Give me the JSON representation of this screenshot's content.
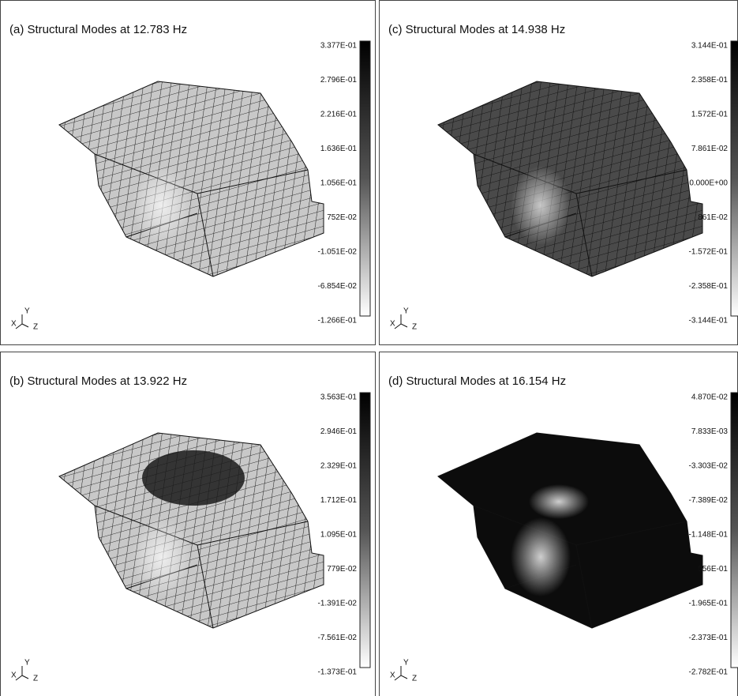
{
  "panels": [
    {
      "title": "(a) Structural Modes at 12.783 Hz",
      "colorbar_labels": [
        "3.377E-01",
        "2.796E-01",
        "2.216E-01",
        "1.636E-01",
        "1.056E-01",
        "752E-02",
        "-1.051E-02",
        "-6.854E-02",
        "-1.266E-01"
      ],
      "triad": [
        "X",
        "Y",
        "Z"
      ]
    },
    {
      "title": "(c) Structural Modes at 14.938 Hz",
      "colorbar_labels": [
        "3.144E-01",
        "2.358E-01",
        "1.572E-01",
        "7.861E-02",
        "0.000E+00",
        "861E-02",
        "-1.572E-01",
        "-2.358E-01",
        "-3.144E-01"
      ],
      "triad": [
        "X",
        "Y",
        "Z"
      ]
    },
    {
      "title": "(b) Structural Modes at 13.922 Hz",
      "colorbar_labels": [
        "3.563E-01",
        "2.946E-01",
        "2.329E-01",
        "1.712E-01",
        "1.095E-01",
        "779E-02",
        "-1.391E-02",
        "-7.561E-02",
        "-1.373E-01"
      ],
      "triad": [
        "X",
        "Y",
        "Z"
      ]
    },
    {
      "title": "(d) Structural Modes at 16.154 Hz",
      "colorbar_labels": [
        "4.870E-02",
        "7.833E-03",
        "-3.303E-02",
        "-7.389E-02",
        "-1.148E-01",
        "556E-01",
        "-1.965E-01",
        "-2.373E-01",
        "-2.782E-01"
      ],
      "triad": [
        "X",
        "Y",
        "Z"
      ]
    }
  ]
}
